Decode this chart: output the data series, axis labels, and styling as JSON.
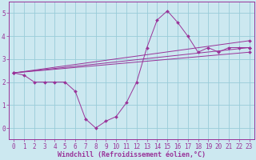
{
  "background_color": "#cce8f0",
  "grid_color": "#99ccd9",
  "line_color": "#993399",
  "marker": "D",
  "marker_size": 2.0,
  "linewidth": 0.7,
  "xlabel": "Windchill (Refroidissement éolien,°C)",
  "xlim": [
    -0.5,
    23.5
  ],
  "ylim": [
    -0.5,
    5.5
  ],
  "yticks": [
    0,
    1,
    2,
    3,
    4,
    5
  ],
  "xticks": [
    0,
    1,
    2,
    3,
    4,
    5,
    6,
    7,
    8,
    9,
    10,
    11,
    12,
    13,
    14,
    15,
    16,
    17,
    18,
    19,
    20,
    21,
    22,
    23
  ],
  "tick_fontsize": 5.5,
  "xlabel_fontsize": 6.0,
  "series": [
    {
      "x": [
        0,
        1,
        2,
        3,
        4,
        5,
        6,
        7,
        8,
        9,
        10,
        11,
        12,
        13,
        14,
        15,
        16,
        17,
        18,
        19,
        20,
        21,
        22,
        23
      ],
      "y": [
        2.4,
        2.3,
        2.0,
        2.0,
        2.0,
        2.0,
        1.6,
        0.4,
        0.0,
        0.3,
        0.5,
        1.1,
        2.0,
        3.5,
        4.7,
        5.1,
        4.6,
        4.0,
        3.3,
        3.5,
        3.3,
        3.5,
        3.5,
        3.5
      ]
    },
    {
      "x": [
        0,
        23
      ],
      "y": [
        2.4,
        3.8
      ]
    },
    {
      "x": [
        0,
        23
      ],
      "y": [
        2.4,
        3.5
      ]
    },
    {
      "x": [
        0,
        23
      ],
      "y": [
        2.4,
        3.3
      ]
    }
  ]
}
